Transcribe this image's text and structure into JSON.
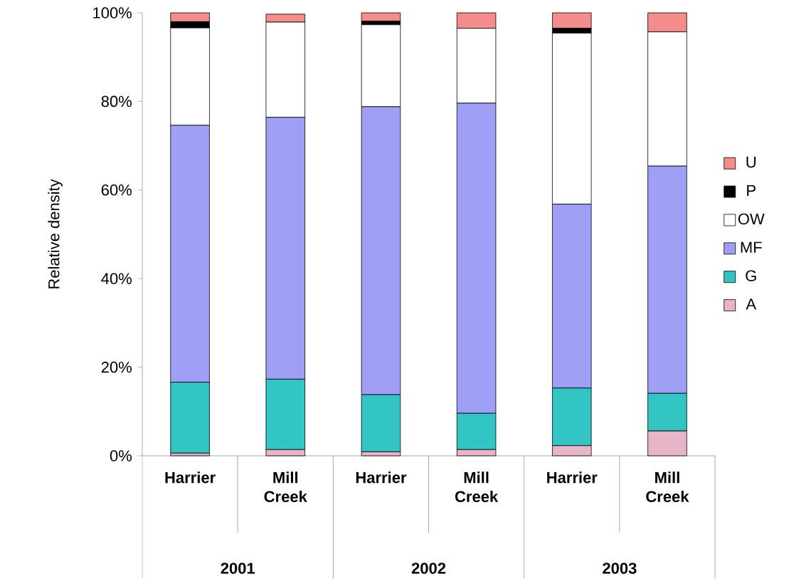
{
  "chart_data": {
    "type": "bar",
    "stacked": true,
    "ylabel": "Relative density",
    "categories": [
      "Harrier",
      "Mill Creek",
      "Harrier",
      "Mill Creek",
      "Harrier",
      "Mill Creek"
    ],
    "annotations": [
      "2001",
      "2002",
      "2003"
    ],
    "ylim": [
      0,
      100
    ],
    "yticks": [
      {
        "value": 0,
        "label": "0%"
      },
      {
        "value": 20,
        "label": "20%"
      },
      {
        "value": 40,
        "label": "40%"
      },
      {
        "value": 60,
        "label": "60%"
      },
      {
        "value": 80,
        "label": "80%"
      },
      {
        "value": 100,
        "label": "100%"
      }
    ],
    "legend": "right",
    "grid": false,
    "series": [
      {
        "name": "A",
        "color": "#e8b4c8",
        "values": [
          0.6,
          1.4,
          0.9,
          1.4,
          2.3,
          5.6
        ]
      },
      {
        "name": "G",
        "color": "#33c4c4",
        "values": [
          16.0,
          15.9,
          12.9,
          8.2,
          13.0,
          8.5
        ]
      },
      {
        "name": "MF",
        "color": "#9f9ff5",
        "values": [
          58.0,
          59.1,
          65.0,
          70.0,
          41.5,
          51.3
        ]
      },
      {
        "name": "OW",
        "color": "#ffffff",
        "values": [
          22.0,
          21.5,
          18.5,
          16.9,
          38.6,
          30.3
        ]
      },
      {
        "name": "P",
        "color": "#000000",
        "values": [
          1.4,
          null,
          0.8,
          0,
          1.1,
          0
        ]
      },
      {
        "name": "U",
        "color": "#f58c8c",
        "values": [
          2.0,
          1.8,
          1.9,
          3.5,
          3.5,
          4.3
        ]
      }
    ]
  }
}
